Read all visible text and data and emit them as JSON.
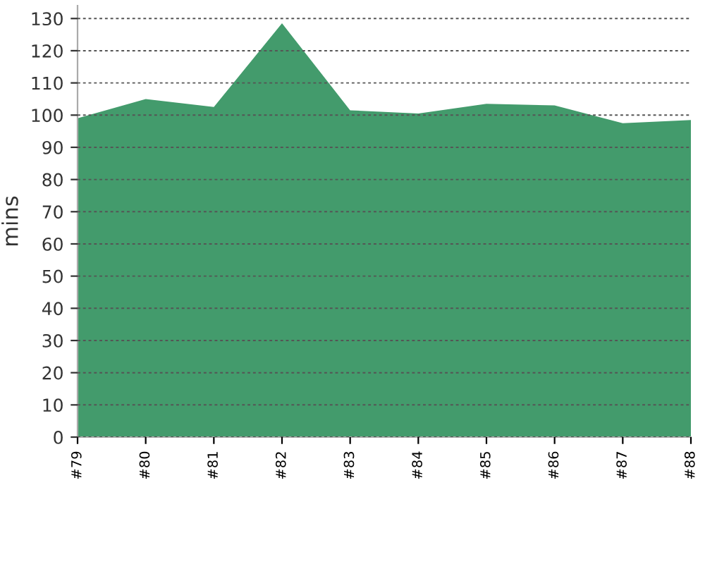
{
  "chart_data": {
    "type": "area",
    "ylabel": "mins",
    "categories": [
      "#79",
      "#80",
      "#81",
      "#82",
      "#83",
      "#84",
      "#85",
      "#86",
      "#87",
      "#88"
    ],
    "series": [
      {
        "color": "#439b6c",
        "values": [
          99,
          105,
          102.5,
          128.5,
          101.5,
          100.5,
          103.5,
          103,
          97.5,
          98.5
        ]
      }
    ],
    "ylim": [
      0,
      134
    ],
    "yticks": [
      0,
      10,
      20,
      30,
      40,
      50,
      60,
      70,
      80,
      90,
      100,
      110,
      120,
      130
    ],
    "grid": "y"
  }
}
